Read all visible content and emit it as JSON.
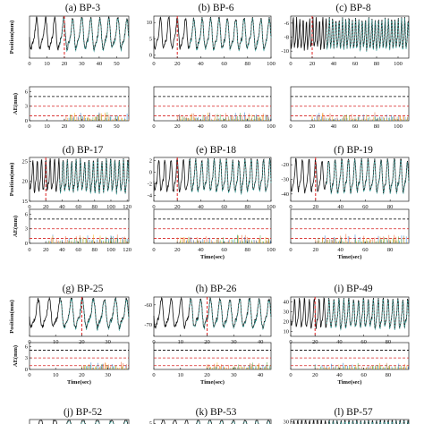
{
  "chart_data": [
    {
      "id": "a",
      "title": "(a) BP-3",
      "type": "line",
      "ylabel_top": "Position(mm)",
      "ylabel_bottom": "AE(mm)",
      "xlabel": "",
      "x_ticks": [
        0,
        10,
        20,
        30,
        40,
        50
      ],
      "xlim": [
        0,
        57
      ],
      "y_ticks": [],
      "ylim": [
        0,
        1
      ],
      "cycles": 11,
      "onset_x": 20,
      "ae_ticks": [
        0,
        3,
        6
      ],
      "ae_ylim": [
        0,
        7
      ],
      "ae_thresholds": [
        5,
        3,
        1
      ]
    },
    {
      "id": "b",
      "title": "(b) BP-6",
      "type": "line",
      "ylabel_top": "",
      "ylabel_bottom": "",
      "xlabel": "",
      "x_ticks": [
        0,
        20,
        40,
        60,
        80,
        100
      ],
      "xlim": [
        0,
        100
      ],
      "y_ticks": [
        0,
        5,
        10
      ],
      "ylim": [
        -1,
        12
      ],
      "cycles": 14,
      "onset_x": 20,
      "ae_ticks": [],
      "ae_ylim": [
        0,
        7
      ],
      "ae_thresholds": [
        5,
        3,
        1
      ]
    },
    {
      "id": "c",
      "title": "(c) BP-8",
      "type": "line",
      "ylabel_top": "",
      "ylabel_bottom": "",
      "xlabel": "",
      "x_ticks": [
        0,
        20,
        40,
        60,
        80,
        100
      ],
      "xlim": [
        0,
        110
      ],
      "y_ticks": [
        -6,
        -8,
        -10
      ],
      "ylim": [
        -11,
        -5
      ],
      "cycles": 36,
      "onset_x": 20,
      "ae_ticks": [],
      "ae_ylim": [
        0,
        7
      ],
      "ae_thresholds": [
        5,
        3,
        1
      ]
    },
    {
      "id": "d",
      "title": "(d) BP-17",
      "type": "line",
      "ylabel_top": "Position(mm)",
      "ylabel_bottom": "AE(mm)",
      "xlabel": "",
      "x_ticks": [
        0,
        20,
        40,
        60,
        80,
        100,
        120
      ],
      "xlim": [
        0,
        122
      ],
      "y_ticks": [
        15,
        20,
        25
      ],
      "ylim": [
        15,
        26
      ],
      "cycles": 23,
      "onset_x": 20,
      "ae_ticks": [
        0,
        3,
        6
      ],
      "ae_ylim": [
        0,
        7
      ],
      "ae_thresholds": [
        5,
        3,
        1
      ]
    },
    {
      "id": "e",
      "title": "(e) BP-18",
      "type": "line",
      "ylabel_top": "",
      "ylabel_bottom": "",
      "xlabel": "Time(sec)",
      "x_ticks": [
        0,
        20,
        40,
        60,
        80,
        100
      ],
      "xlim": [
        0,
        100
      ],
      "y_ticks": [
        2,
        0,
        -2,
        -4
      ],
      "ylim": [
        -5,
        2.5
      ],
      "cycles": 19,
      "onset_x": 20,
      "ae_ticks": [],
      "ae_ylim": [
        0,
        7
      ],
      "ae_thresholds": [
        5,
        3,
        1
      ]
    },
    {
      "id": "f",
      "title": "(f) BP-19",
      "type": "line",
      "ylabel_top": "",
      "ylabel_bottom": "",
      "xlabel": "Time(sec)",
      "x_ticks": [
        0,
        20,
        40,
        60,
        80
      ],
      "xlim": [
        0,
        95
      ],
      "y_ticks": [
        -40,
        -30,
        -20
      ],
      "ylim": [
        -45,
        -15
      ],
      "cycles": 18,
      "onset_x": 20,
      "ae_ticks": [],
      "ae_ylim": [
        0,
        7
      ],
      "ae_thresholds": [
        5,
        3,
        1
      ]
    },
    {
      "id": "g",
      "title": "(g) BP-25",
      "type": "line",
      "ylabel_top": "Position(mm)",
      "ylabel_bottom": "AE(mm)",
      "xlabel": "Time(sec)",
      "x_ticks": [
        0,
        10,
        20,
        30
      ],
      "xlim": [
        0,
        38
      ],
      "y_ticks": [],
      "ylim": [
        0,
        1
      ],
      "cycles": 9,
      "onset_x": 20,
      "ae_ticks": [
        0,
        3,
        6
      ],
      "ae_ylim": [
        0,
        7
      ],
      "ae_thresholds": [
        5,
        3,
        1
      ]
    },
    {
      "id": "h",
      "title": "(h) BP-26",
      "type": "line",
      "ylabel_top": "",
      "ylabel_bottom": "",
      "xlabel": "Time(sec)",
      "x_ticks": [
        0,
        10,
        20,
        30,
        40
      ],
      "xlim": [
        0,
        44
      ],
      "y_ticks": [
        -60,
        -70
      ],
      "ylim": [
        -76,
        -56
      ],
      "cycles": 12,
      "onset_x": 20,
      "ae_ticks": [],
      "ae_ylim": [
        0,
        7
      ],
      "ae_thresholds": [
        5,
        3,
        1
      ]
    },
    {
      "id": "i",
      "title": "(i) BP-49",
      "type": "line",
      "ylabel_top": "",
      "ylabel_bottom": "",
      "xlabel": "Time(sec)",
      "x_ticks": [
        0,
        20,
        40,
        60,
        80
      ],
      "xlim": [
        0,
        97
      ],
      "y_ticks": [
        40,
        30,
        20,
        10
      ],
      "ylim": [
        5,
        45
      ],
      "cycles": 24,
      "onset_x": 20,
      "ae_ticks": [],
      "ae_ylim": [
        0,
        7
      ],
      "ae_thresholds": [
        5,
        3,
        1
      ]
    },
    {
      "id": "j",
      "title": "(j) BP-52",
      "type": "line",
      "ylabel_top": "",
      "ylabel_bottom": "",
      "xlabel": "",
      "x_ticks": [],
      "xlim": [
        0,
        1
      ],
      "y_ticks": [],
      "ylim": [
        0,
        1
      ],
      "cycles": 7,
      "onset_x": 0,
      "ae_ticks": [],
      "ae_ylim": [
        0,
        7
      ],
      "ae_thresholds": []
    },
    {
      "id": "k",
      "title": "(k) BP-53",
      "type": "line",
      "ylabel_top": "",
      "ylabel_bottom": "",
      "xlabel": "",
      "x_ticks": [],
      "xlim": [
        0,
        1
      ],
      "y_ticks": [
        5,
        0
      ],
      "ylim": [
        -2,
        7
      ],
      "cycles": 10,
      "onset_x": 0,
      "ae_ticks": [],
      "ae_ylim": [
        0,
        7
      ],
      "ae_thresholds": []
    },
    {
      "id": "l",
      "title": "(l) BP-57",
      "type": "line",
      "ylabel_top": "",
      "ylabel_bottom": "",
      "xlabel": "",
      "x_ticks": [],
      "xlim": [
        0,
        1
      ],
      "y_ticks": [
        30,
        20
      ],
      "ylim": [
        15,
        32
      ],
      "cycles": 30,
      "onset_x": 0,
      "ae_ticks": [],
      "ae_ylim": [
        0,
        7
      ],
      "ae_thresholds": []
    }
  ],
  "colors": {
    "trace": "#111111",
    "prediction": "#3aa6a0",
    "onset": "#e02020",
    "thr_black": "#000000",
    "thr_red": "#d62020",
    "ae_series": [
      "#e8602c",
      "#2a7fd0",
      "#4aa843",
      "#f2b21a"
    ]
  }
}
